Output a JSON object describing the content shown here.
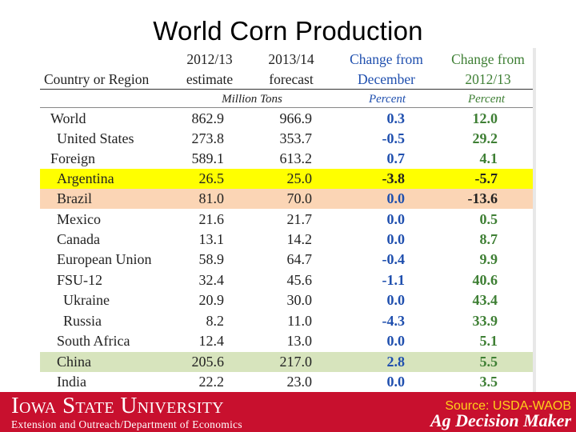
{
  "title": "World Corn Production",
  "header": {
    "col0": "Country or Region",
    "col1_line1": "2012/13",
    "col1_line2": "estimate",
    "col2_line1": "2013/14",
    "col2_line2": "forecast",
    "col3_line1": "Change from",
    "col3_line2": "December",
    "col4_line1": "Change from",
    "col4_line2": "2012/13",
    "units_tons": "Million Tons",
    "units_pct1": "Percent",
    "units_pct2": "Percent"
  },
  "colors": {
    "highlight_yellow": "#ffff00",
    "highlight_peach": "#fbd5b5",
    "highlight_green": "#d7e4bd",
    "blue_text": "#1f4fae",
    "green_text": "#3e7f34",
    "footer_red": "#c8102e",
    "source_yellow": "#ffd21a"
  },
  "rows": [
    {
      "name": "World",
      "est": "862.9",
      "fc": "966.9",
      "chg_dec": "0.3",
      "chg_prev": "12.0"
    },
    {
      "name": "United States",
      "est": "273.8",
      "fc": "353.7",
      "chg_dec": "-0.5",
      "chg_prev": "29.2"
    },
    {
      "name": "Foreign",
      "est": "589.1",
      "fc": "613.2",
      "chg_dec": "0.7",
      "chg_prev": "4.1"
    },
    {
      "name": "Argentina",
      "est": "26.5",
      "fc": "25.0",
      "chg_dec": "-3.8",
      "chg_prev": "-5.7"
    },
    {
      "name": "Brazil",
      "est": "81.0",
      "fc": "70.0",
      "chg_dec": "0.0",
      "chg_prev": "-13.6"
    },
    {
      "name": "Mexico",
      "est": "21.6",
      "fc": "21.7",
      "chg_dec": "0.0",
      "chg_prev": "0.5"
    },
    {
      "name": "Canada",
      "est": "13.1",
      "fc": "14.2",
      "chg_dec": "0.0",
      "chg_prev": "8.7"
    },
    {
      "name": "European Union",
      "est": "58.9",
      "fc": "64.7",
      "chg_dec": "-0.4",
      "chg_prev": "9.9"
    },
    {
      "name": "FSU-12",
      "est": "32.4",
      "fc": "45.6",
      "chg_dec": "-1.1",
      "chg_prev": "40.6"
    },
    {
      "name": "Ukraine",
      "est": "20.9",
      "fc": "30.0",
      "chg_dec": "0.0",
      "chg_prev": "43.4"
    },
    {
      "name": "Russia",
      "est": "8.2",
      "fc": "11.0",
      "chg_dec": "-4.3",
      "chg_prev": "33.9"
    },
    {
      "name": "South Africa",
      "est": "12.4",
      "fc": "13.0",
      "chg_dec": "0.0",
      "chg_prev": "5.1"
    },
    {
      "name": "China",
      "est": "205.6",
      "fc": "217.0",
      "chg_dec": "2.8",
      "chg_prev": "5.5"
    },
    {
      "name": "India",
      "est": "22.2",
      "fc": "23.0",
      "chg_dec": "0.0",
      "chg_prev": "3.5"
    }
  ],
  "footer": {
    "university": "Iowa State University",
    "department": "Extension and Outreach/Department of Economics",
    "source": "Source: USDA-WAOB",
    "brand": "Ag Decision Maker"
  }
}
